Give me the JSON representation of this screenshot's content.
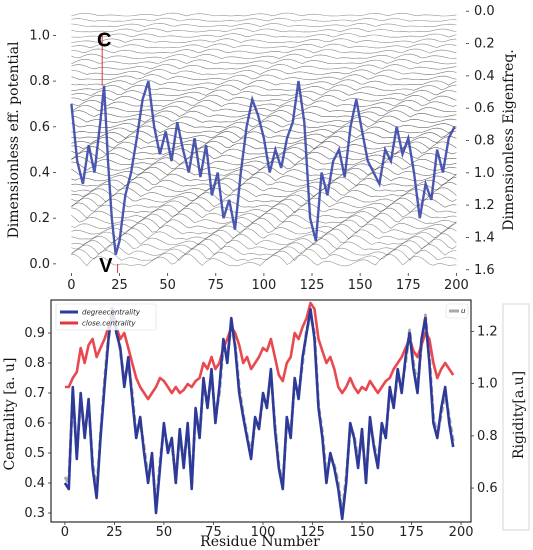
{
  "chart_data": [
    {
      "type": "line",
      "xlabel": "",
      "ylabel": "Dimensionless eff. potential",
      "ylabel_right": "Dimensionless Eigenfreq.",
      "xlim": [
        -8,
        205
      ],
      "ylim": [
        -0.04,
        1.12
      ],
      "ylim_right": [
        1.62,
        -0.02
      ],
      "xticks": [
        "0",
        "25",
        "50",
        "75",
        "100",
        "125",
        "150",
        "175",
        "200"
      ],
      "yticks": [
        "0.0",
        "0.2",
        "0.4",
        "0.6",
        "0.8",
        "1.0"
      ],
      "yticks_right": [
        "0.0",
        "0.2",
        "0.4",
        "0.6",
        "0.8",
        "1.0",
        "1.2",
        "1.4",
        "1.6"
      ],
      "annotations": [
        {
          "text": "C",
          "x": 16,
          "y": 0.82
        },
        {
          "text": "V",
          "x": 22,
          "y": 0.0
        }
      ],
      "series": [
        {
          "color": "#3a46a8",
          "x": [
            0,
            3,
            6,
            9,
            12,
            15,
            17,
            19,
            21,
            23,
            25,
            28,
            31,
            34,
            37,
            40,
            43,
            46,
            49,
            52,
            55,
            58,
            61,
            64,
            67,
            70,
            73,
            76,
            79,
            82,
            85,
            88,
            91,
            94,
            97,
            100,
            103,
            106,
            109,
            112,
            115,
            118,
            121,
            124,
            127,
            130,
            133,
            136,
            139,
            142,
            145,
            148,
            151,
            154,
            157,
            160,
            163,
            166,
            169,
            172,
            175,
            178,
            181,
            184,
            187,
            190,
            193,
            196,
            199
          ],
          "values": [
            0.7,
            0.45,
            0.35,
            0.52,
            0.4,
            0.62,
            0.78,
            0.45,
            0.2,
            0.04,
            0.1,
            0.3,
            0.4,
            0.55,
            0.72,
            0.8,
            0.6,
            0.48,
            0.58,
            0.45,
            0.62,
            0.5,
            0.4,
            0.55,
            0.38,
            0.52,
            0.3,
            0.4,
            0.2,
            0.28,
            0.15,
            0.4,
            0.6,
            0.72,
            0.65,
            0.55,
            0.4,
            0.5,
            0.42,
            0.55,
            0.62,
            0.8,
            0.62,
            0.2,
            0.1,
            0.4,
            0.3,
            0.45,
            0.5,
            0.38,
            0.6,
            0.72,
            0.58,
            0.45,
            0.4,
            0.35,
            0.5,
            0.45,
            0.6,
            0.48,
            0.55,
            0.4,
            0.2,
            0.35,
            0.28,
            0.5,
            0.4,
            0.55,
            0.6
          ]
        }
      ]
    },
    {
      "type": "line",
      "xlabel": "Residue Number",
      "ylabel": "Centrality [a. u]",
      "ylabel_right": "Rigidity[a.u]",
      "xlim": [
        -7,
        205
      ],
      "ylim": [
        0.27,
        1.01
      ],
      "ylim_right": [
        0.47,
        1.32
      ],
      "xticks": [
        "0",
        "25",
        "50",
        "75",
        "100",
        "125",
        "150",
        "175",
        "200"
      ],
      "yticks": [
        "0.3",
        "0.4",
        "0.5",
        "0.6",
        "0.7",
        "0.8",
        "0.9"
      ],
      "yticks_right": [
        "0.6",
        "0.8",
        "1.0",
        "1.2"
      ],
      "legend_left": [
        "degreecentrality",
        "close.centrality"
      ],
      "legend_right": [
        "u"
      ],
      "series": [
        {
          "name": "degreecentrality",
          "color": "#2e3a9a",
          "x": [
            0,
            2,
            4,
            6,
            8,
            10,
            12,
            14,
            16,
            18,
            20,
            22,
            24,
            26,
            28,
            30,
            32,
            34,
            36,
            38,
            40,
            42,
            44,
            46,
            48,
            50,
            52,
            54,
            56,
            58,
            60,
            62,
            64,
            66,
            68,
            70,
            72,
            74,
            76,
            78,
            80,
            82,
            84,
            86,
            88,
            90,
            92,
            94,
            96,
            98,
            100,
            102,
            104,
            106,
            108,
            110,
            112,
            114,
            116,
            118,
            120,
            122,
            124,
            126,
            128,
            130,
            132,
            134,
            136,
            138,
            140,
            142,
            144,
            146,
            148,
            150,
            152,
            154,
            156,
            158,
            160,
            162,
            164,
            166,
            168,
            170,
            172,
            174,
            176,
            178,
            180,
            182,
            184,
            186,
            188,
            190,
            192,
            194,
            196
          ],
          "values": [
            0.4,
            0.38,
            0.72,
            0.48,
            0.7,
            0.55,
            0.68,
            0.45,
            0.35,
            0.55,
            0.72,
            0.88,
            0.98,
            0.9,
            0.85,
            0.72,
            0.82,
            0.68,
            0.55,
            0.62,
            0.5,
            0.4,
            0.5,
            0.3,
            0.45,
            0.6,
            0.5,
            0.55,
            0.4,
            0.58,
            0.45,
            0.6,
            0.38,
            0.65,
            0.55,
            0.75,
            0.65,
            0.78,
            0.6,
            0.72,
            0.88,
            0.8,
            0.95,
            0.85,
            0.7,
            0.62,
            0.55,
            0.48,
            0.62,
            0.58,
            0.7,
            0.65,
            0.78,
            0.58,
            0.45,
            0.38,
            0.62,
            0.55,
            0.75,
            0.68,
            0.82,
            0.9,
            0.98,
            0.88,
            0.65,
            0.55,
            0.4,
            0.5,
            0.45,
            0.38,
            0.28,
            0.4,
            0.6,
            0.55,
            0.45,
            0.58,
            0.4,
            0.62,
            0.52,
            0.45,
            0.6,
            0.55,
            0.72,
            0.65,
            0.78,
            0.7,
            0.82,
            0.9,
            0.78,
            0.7,
            0.88,
            0.95,
            0.8,
            0.6,
            0.55,
            0.65,
            0.72,
            0.6,
            0.52
          ]
        },
        {
          "name": "close.centrality",
          "color": "#e8343c",
          "x": [
            0,
            2,
            4,
            6,
            8,
            10,
            12,
            14,
            16,
            18,
            20,
            22,
            24,
            26,
            28,
            30,
            32,
            34,
            36,
            38,
            40,
            42,
            44,
            46,
            48,
            50,
            52,
            54,
            56,
            58,
            60,
            62,
            64,
            66,
            68,
            70,
            72,
            74,
            76,
            78,
            80,
            82,
            84,
            86,
            88,
            90,
            92,
            94,
            96,
            98,
            100,
            102,
            104,
            106,
            108,
            110,
            112,
            114,
            116,
            118,
            120,
            122,
            124,
            126,
            128,
            130,
            132,
            134,
            136,
            138,
            140,
            142,
            144,
            146,
            148,
            150,
            152,
            154,
            156,
            158,
            160,
            162,
            164,
            166,
            168,
            170,
            172,
            174,
            176,
            178,
            180,
            182,
            184,
            186,
            188,
            190,
            192,
            194,
            196
          ],
          "values": [
            0.72,
            0.72,
            0.75,
            0.77,
            0.85,
            0.8,
            0.86,
            0.88,
            0.82,
            0.85,
            0.88,
            0.92,
            0.95,
            0.92,
            0.88,
            0.9,
            0.85,
            0.8,
            0.75,
            0.72,
            0.7,
            0.68,
            0.7,
            0.72,
            0.75,
            0.74,
            0.72,
            0.7,
            0.72,
            0.7,
            0.71,
            0.73,
            0.72,
            0.74,
            0.75,
            0.8,
            0.78,
            0.82,
            0.78,
            0.8,
            0.85,
            0.88,
            0.92,
            0.9,
            0.86,
            0.8,
            0.82,
            0.78,
            0.8,
            0.82,
            0.85,
            0.84,
            0.88,
            0.82,
            0.76,
            0.74,
            0.8,
            0.82,
            0.9,
            0.88,
            0.92,
            0.95,
            1.0,
            0.98,
            0.88,
            0.84,
            0.8,
            0.82,
            0.78,
            0.72,
            0.7,
            0.72,
            0.75,
            0.72,
            0.7,
            0.72,
            0.71,
            0.74,
            0.72,
            0.7,
            0.72,
            0.74,
            0.75,
            0.78,
            0.8,
            0.82,
            0.85,
            0.88,
            0.84,
            0.82,
            0.86,
            0.9,
            0.88,
            0.8,
            0.75,
            0.78,
            0.8,
            0.78,
            0.76
          ]
        },
        {
          "name": "u",
          "color": "#aaaaaa",
          "dashed": true,
          "x": [
            0,
            2,
            4,
            6,
            8,
            10,
            12,
            14,
            16,
            18,
            20,
            22,
            24,
            26,
            28,
            30,
            32,
            34,
            36,
            38,
            40,
            42,
            44,
            46,
            48,
            50,
            52,
            54,
            56,
            58,
            60,
            62,
            64,
            66,
            68,
            70,
            72,
            74,
            76,
            78,
            80,
            82,
            84,
            86,
            88,
            90,
            92,
            94,
            96,
            98,
            100,
            102,
            104,
            106,
            108,
            110,
            112,
            114,
            116,
            118,
            120,
            122,
            124,
            126,
            128,
            130,
            132,
            134,
            136,
            138,
            140,
            142,
            144,
            146,
            148,
            150,
            152,
            154,
            156,
            158,
            160,
            162,
            164,
            166,
            168,
            170,
            172,
            174,
            176,
            178,
            180,
            182,
            184,
            186,
            188,
            190,
            192,
            194,
            196
          ],
          "values": [
            0.42,
            0.4,
            0.7,
            0.5,
            0.68,
            0.57,
            0.66,
            0.47,
            0.37,
            0.56,
            0.74,
            0.89,
            0.99,
            0.92,
            0.84,
            0.74,
            0.8,
            0.7,
            0.56,
            0.6,
            0.52,
            0.42,
            0.48,
            0.32,
            0.47,
            0.58,
            0.52,
            0.53,
            0.42,
            0.56,
            0.47,
            0.58,
            0.4,
            0.63,
            0.56,
            0.73,
            0.66,
            0.76,
            0.62,
            0.7,
            0.86,
            0.82,
            0.93,
            0.86,
            0.72,
            0.63,
            0.56,
            0.5,
            0.6,
            0.59,
            0.68,
            0.66,
            0.76,
            0.6,
            0.46,
            0.4,
            0.6,
            0.57,
            0.73,
            0.7,
            0.8,
            0.91,
            0.96,
            0.9,
            0.66,
            0.57,
            0.42,
            0.49,
            0.46,
            0.4,
            0.3,
            0.42,
            0.58,
            0.56,
            0.47,
            0.56,
            0.42,
            0.6,
            0.53,
            0.47,
            0.58,
            0.56,
            0.7,
            0.66,
            0.76,
            0.72,
            0.8,
            0.91,
            0.8,
            0.72,
            0.86,
            0.96,
            0.82,
            0.62,
            0.56,
            0.63,
            0.7,
            0.62,
            0.54
          ]
        }
      ]
    }
  ]
}
